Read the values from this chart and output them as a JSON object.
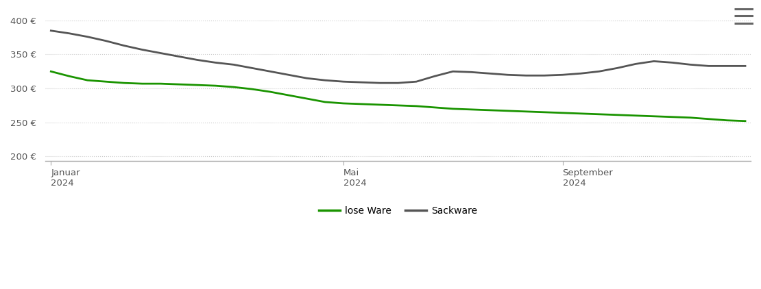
{
  "lose_ware": [
    325,
    318,
    312,
    310,
    308,
    307,
    307,
    306,
    305,
    304,
    302,
    299,
    295,
    290,
    285,
    280,
    278,
    277,
    276,
    275,
    274,
    272,
    270,
    269,
    268,
    267,
    266,
    265,
    264,
    263,
    262,
    261,
    260,
    259,
    258,
    257,
    255,
    253,
    252
  ],
  "sackware": [
    385,
    381,
    376,
    370,
    363,
    357,
    352,
    347,
    342,
    338,
    335,
    330,
    325,
    320,
    315,
    312,
    310,
    309,
    308,
    308,
    310,
    318,
    325,
    324,
    322,
    320,
    319,
    319,
    320,
    322,
    325,
    330,
    336,
    340,
    338,
    335,
    333,
    333,
    333
  ],
  "n_points": 39,
  "x_ticks_indices": [
    0,
    16,
    28
  ],
  "x_tick_labels": [
    "Januar\n2024",
    "Mai\n2024",
    "September\n2024"
  ],
  "y_ticks": [
    200,
    250,
    300,
    350,
    400
  ],
  "y_labels": [
    "200 €",
    "250 €",
    "300 €",
    "350 €",
    "400 €"
  ],
  "ylim": [
    193,
    415
  ],
  "xlim": [
    -0.3,
    38.3
  ],
  "lose_ware_color": "#1a9400",
  "sackware_color": "#555555",
  "background_color": "#ffffff",
  "grid_color": "#cccccc",
  "legend_lose_label": "lose Ware",
  "legend_sack_label": "Sackware",
  "line_width": 2.0
}
